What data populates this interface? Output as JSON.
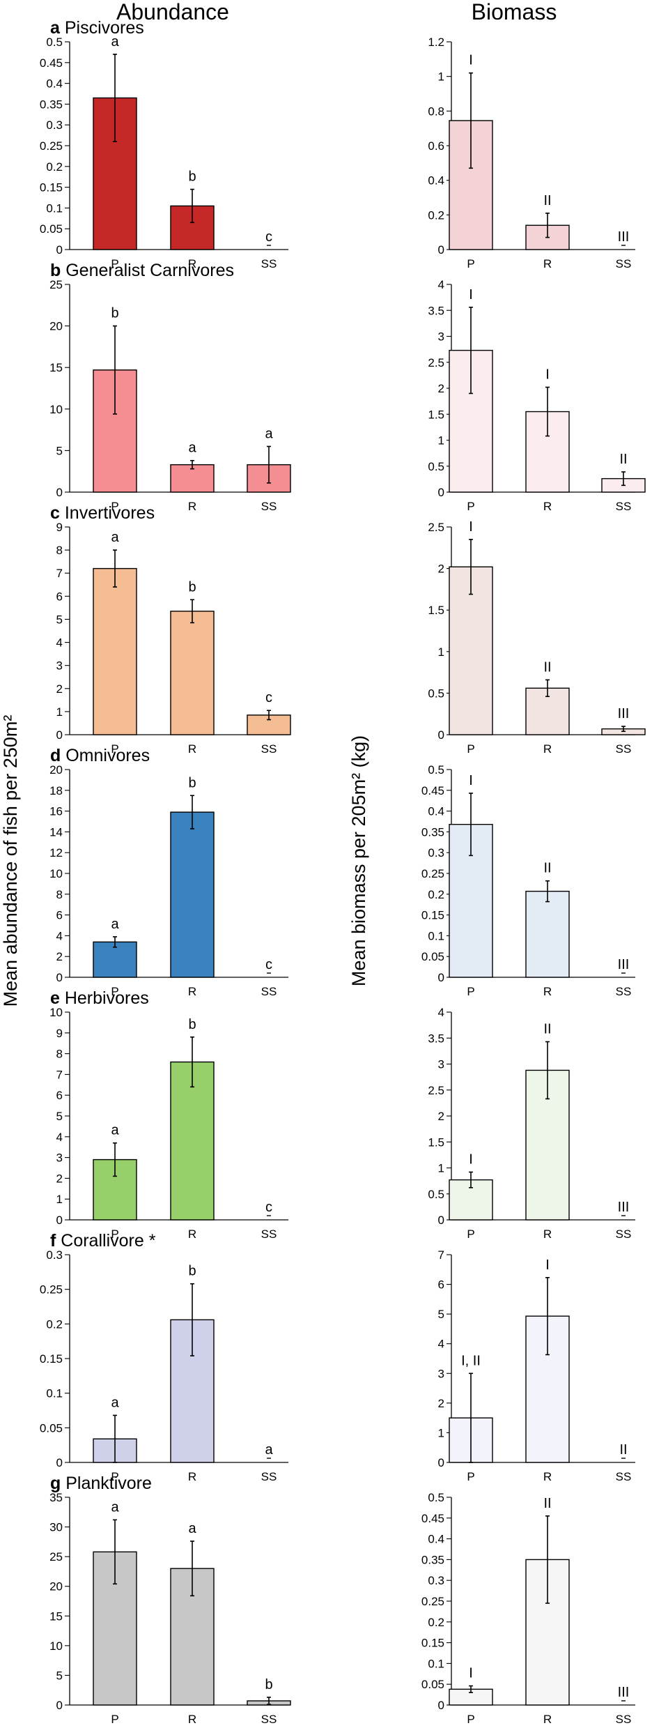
{
  "headers": {
    "left": "Abundance",
    "right": "Biomass"
  },
  "ylabel_left": "Mean abundance of fish per 250m²",
  "ylabel_right": "Mean biomass per 205m² (kg)",
  "chart_data": [
    {
      "letter": "a",
      "title": "Piscivores",
      "categories": [
        "P",
        "R",
        "SS"
      ],
      "abundance": {
        "type": "bar",
        "values": [
          0.365,
          0.105,
          0.0
        ],
        "errors": [
          0.105,
          0.04,
          0.0
        ],
        "ylim": [
          0,
          0.5
        ],
        "ticks": [
          "0",
          "0.05",
          "0.1",
          "0.15",
          "0.2",
          "0.25",
          "0.3",
          "0.35",
          "0.4",
          "0.45",
          "0.5"
        ],
        "sig": [
          "a",
          "b",
          "c"
        ],
        "color": "#c62828"
      },
      "biomass": {
        "type": "bar",
        "values": [
          0.745,
          0.14,
          0.0
        ],
        "errors": [
          0.275,
          0.07,
          0.0
        ],
        "ylim": [
          0,
          1.2
        ],
        "ticks": [
          "0",
          "0.2",
          "0.4",
          "0.6",
          "0.8",
          "1",
          "1.2"
        ],
        "sig": [
          "I",
          "II",
          "III"
        ],
        "color": "#f3d3d6"
      }
    },
    {
      "letter": "b",
      "title": "Generalist Carnivores",
      "categories": [
        "P",
        "R",
        "SS"
      ],
      "abundance": {
        "type": "bar",
        "values": [
          14.7,
          3.3,
          3.3
        ],
        "errors": [
          5.3,
          0.5,
          2.2
        ],
        "ylim": [
          0,
          25
        ],
        "ticks": [
          "0",
          "5",
          "10",
          "15",
          "20",
          "25"
        ],
        "sig": [
          "b",
          "a",
          "a"
        ],
        "color": "#f48e92"
      },
      "biomass": {
        "type": "bar",
        "values": [
          2.73,
          1.55,
          0.26
        ],
        "errors": [
          0.83,
          0.47,
          0.13
        ],
        "ylim": [
          0,
          4
        ],
        "ticks": [
          "0",
          "0.5",
          "1",
          "1.5",
          "2",
          "2.5",
          "3",
          "3.5",
          "4"
        ],
        "sig": [
          "I",
          "I",
          "II"
        ],
        "color": "#fbecee"
      }
    },
    {
      "letter": "c",
      "title": "Invertivores",
      "categories": [
        "P",
        "R",
        "SS"
      ],
      "abundance": {
        "type": "bar",
        "values": [
          7.2,
          5.35,
          0.85
        ],
        "errors": [
          0.8,
          0.5,
          0.2
        ],
        "ylim": [
          0,
          9
        ],
        "ticks": [
          "0",
          "1",
          "2",
          "3",
          "4",
          "5",
          "6",
          "7",
          "8",
          "9"
        ],
        "sig": [
          "a",
          "b",
          "c"
        ],
        "color": "#f5bd94"
      },
      "biomass": {
        "type": "bar",
        "values": [
          2.02,
          0.56,
          0.07
        ],
        "errors": [
          0.33,
          0.1,
          0.03
        ],
        "ylim": [
          0,
          2.5
        ],
        "ticks": [
          "0",
          "0.5",
          "1",
          "1.5",
          "2",
          "2.5"
        ],
        "sig": [
          "I",
          "II",
          "III"
        ],
        "color": "#f2e5e1"
      }
    },
    {
      "letter": "d",
      "title": "Omnivores",
      "categories": [
        "P",
        "R",
        "SS"
      ],
      "abundance": {
        "type": "bar",
        "values": [
          3.4,
          15.9,
          0.0
        ],
        "errors": [
          0.5,
          1.6,
          0.0
        ],
        "ylim": [
          0,
          20
        ],
        "ticks": [
          "0",
          "2",
          "4",
          "6",
          "8",
          "10",
          "12",
          "14",
          "16",
          "18",
          "20"
        ],
        "sig": [
          "a",
          "b",
          "c"
        ],
        "color": "#3982bd"
      },
      "biomass": {
        "type": "bar",
        "values": [
          0.368,
          0.207,
          0.0
        ],
        "errors": [
          0.075,
          0.025,
          0.0
        ],
        "ylim": [
          0,
          0.5
        ],
        "ticks": [
          "0",
          "0.05",
          "0.1",
          "0.15",
          "0.2",
          "0.25",
          "0.3",
          "0.35",
          "0.4",
          "0.45",
          "0.5"
        ],
        "sig": [
          "I",
          "II",
          "III"
        ],
        "color": "#e3ebf5"
      }
    },
    {
      "letter": "e",
      "title": "Herbivores",
      "categories": [
        "P",
        "R",
        "SS"
      ],
      "abundance": {
        "type": "bar",
        "values": [
          2.9,
          7.6,
          0.0
        ],
        "errors": [
          0.8,
          1.2,
          0.0
        ],
        "ylim": [
          0,
          10
        ],
        "ticks": [
          "0",
          "1",
          "2",
          "3",
          "4",
          "5",
          "6",
          "7",
          "8",
          "9",
          "10"
        ],
        "sig": [
          "a",
          "b",
          "c"
        ],
        "color": "#97cf6b"
      },
      "biomass": {
        "type": "bar",
        "values": [
          0.77,
          2.88,
          0.0
        ],
        "errors": [
          0.15,
          0.55,
          0.0
        ],
        "ylim": [
          0,
          4
        ],
        "ticks": [
          "0",
          "0.5",
          "1",
          "1.5",
          "2",
          "2.5",
          "3",
          "3.5",
          "4"
        ],
        "sig": [
          "I",
          "II",
          "III"
        ],
        "color": "#eef6ea"
      }
    },
    {
      "letter": "f",
      "title": "Corallivore *",
      "categories": [
        "P",
        "R",
        "SS"
      ],
      "abundance": {
        "type": "bar",
        "values": [
          0.034,
          0.206,
          0.0
        ],
        "errors": [
          0.034,
          0.052,
          0.0
        ],
        "ylim": [
          0,
          0.3
        ],
        "ticks": [
          "0",
          "0.05",
          "0.1",
          "0.15",
          "0.2",
          "0.25",
          "0.3"
        ],
        "sig": [
          "a",
          "b",
          "a"
        ],
        "color": "#cfd0ea"
      },
      "biomass": {
        "type": "bar",
        "values": [
          1.5,
          4.93,
          0.0
        ],
        "errors": [
          1.5,
          1.3,
          0.0
        ],
        "ylim": [
          0,
          7
        ],
        "ticks": [
          "0",
          "1",
          "2",
          "3",
          "4",
          "5",
          "6",
          "7"
        ],
        "sig": [
          "I, II",
          "I",
          "II"
        ],
        "color": "#f3f3fb"
      }
    },
    {
      "letter": "g",
      "title": "Planktivore",
      "categories": [
        "P",
        "R",
        "SS"
      ],
      "abundance": {
        "type": "bar",
        "values": [
          25.8,
          23.0,
          0.7
        ],
        "errors": [
          5.4,
          4.6,
          0.6
        ],
        "ylim": [
          0,
          35
        ],
        "ticks": [
          "0",
          "5",
          "10",
          "15",
          "20",
          "25",
          "30",
          "35"
        ],
        "sig": [
          "a",
          "a",
          "b"
        ],
        "color": "#c7c7c7"
      },
      "biomass": {
        "type": "bar",
        "values": [
          0.038,
          0.35,
          0.0
        ],
        "errors": [
          0.008,
          0.105,
          0.0
        ],
        "ylim": [
          0,
          0.5
        ],
        "ticks": [
          "0",
          "0.05",
          "0.1",
          "0.15",
          "0.2",
          "0.25",
          "0.3",
          "0.35",
          "0.4",
          "0.45",
          "0.5"
        ],
        "sig": [
          "I",
          "II",
          "III"
        ],
        "color": "#f6f6f6"
      }
    }
  ]
}
